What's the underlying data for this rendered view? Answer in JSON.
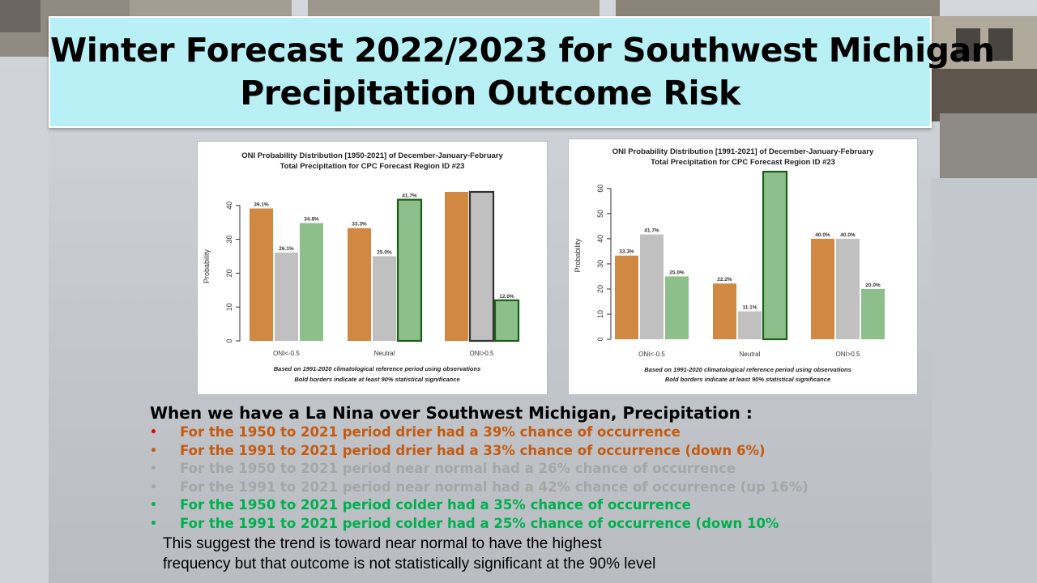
{
  "title": {
    "line1": "Winter Forecast 2022/2023 for Southwest Michigan",
    "line2": "Precipitation Outcome Risk"
  },
  "colors": {
    "drier": "#d08842",
    "normal": "#c0c0c0",
    "wetter": "#8dbf8b",
    "bold_border_green": "#1a5e1a",
    "bold_border_gray": "#333333",
    "title_bg": "#b9f0f5"
  },
  "chart_data": [
    {
      "type": "bar",
      "title": "ONI Probability Distribution [1950-2021] of December-January-February\nTotal Precipitation  for CPC Forecast Region ID #23",
      "title_lines": [
        "ONI Probability Distribution [1950-2021] of December-January-February",
        "Total Precipitation  for CPC Forecast Region ID #23"
      ],
      "ylabel": "Probability",
      "ylim": [
        0,
        44
      ],
      "yticks": [
        0,
        10,
        20,
        30,
        40
      ],
      "categories": [
        "ONI<-0.5",
        "Neutral",
        "ONI>0.5"
      ],
      "series": [
        {
          "values": [
            39.1,
            33.3,
            44.0
          ],
          "labels": [
            "39.1%",
            "33.3%",
            ""
          ],
          "bold": [
            false,
            false,
            false
          ]
        },
        {
          "values": [
            26.1,
            25.0,
            44.0
          ],
          "labels": [
            "26.1%",
            "25.0%",
            ""
          ],
          "bold": [
            false,
            false,
            true
          ]
        },
        {
          "values": [
            34.8,
            41.7,
            12.0
          ],
          "labels": [
            "34.8%",
            "41.7%",
            "12.0%"
          ],
          "bold": [
            false,
            true,
            true
          ]
        }
      ],
      "notes": [
        "Based on 1991-2020 climatological reference period using observations",
        "Bold borders indicate at least 90% statistical significance"
      ]
    },
    {
      "type": "bar",
      "title": "ONI Probability Distribution [1991-2021] of December-January-February\nTotal Precipitation  for CPC Forecast Region ID #23",
      "title_lines": [
        "ONI Probability Distribution [1991-2021] of December-January-February",
        "Total Precipitation  for CPC Forecast Region ID #23"
      ],
      "ylabel": "Probability",
      "ylim": [
        0,
        66.7
      ],
      "yticks": [
        0,
        10,
        20,
        30,
        40,
        50,
        60
      ],
      "categories": [
        "ONI<-0.5",
        "Neutral",
        "ONI>0.5"
      ],
      "series": [
        {
          "values": [
            33.3,
            22.2,
            40.0
          ],
          "labels": [
            "33.3%",
            "22.2%",
            "40.0%"
          ],
          "bold": [
            false,
            false,
            false
          ]
        },
        {
          "values": [
            41.7,
            11.1,
            40.0
          ],
          "labels": [
            "41.7%",
            "11.1%",
            "40.0%"
          ],
          "bold": [
            false,
            false,
            false
          ]
        },
        {
          "values": [
            25.0,
            66.7,
            20.0
          ],
          "labels": [
            "25.0%",
            "",
            "20.0%"
          ],
          "bold": [
            false,
            true,
            false
          ]
        }
      ],
      "notes": [
        "Based on 1991-2020 climatological reference period using observations",
        "Bold borders indicate at least 90% statistical significance"
      ]
    }
  ],
  "text": {
    "heading": "When we have a La Nina over Southwest Michigan, Precipitation :",
    "bullets": [
      {
        "text": "For the 1950 to 2021 period drier had a 39% chance of occurrence",
        "color": "#c55a11",
        "dot_color": "#e00000"
      },
      {
        "text": "For the 1991 to 2021 period drier had a 33% chance of occurrence (down 6%)",
        "color": "#c55a11",
        "dot_color": "#c55a11"
      },
      {
        "text": "For the 1950 to 2021 period near normal had a 26% chance of occurrence",
        "color": "#a6a6a6",
        "dot_color": "#a6a6a6"
      },
      {
        "text": "For the 1991 to 2021 period near normal had a 42% chance of occurrence (up 16%)",
        "color": "#a6a6a6",
        "dot_color": "#a6a6a6"
      },
      {
        "text": "For the 1950 to 2021 period colder had a 35% chance of occurrence",
        "color": "#00b050",
        "dot_color": "#00b050"
      },
      {
        "text": "For the 1991 to 2021 period colder had a 25% chance of occurrence (down 10%",
        "color": "#00b050",
        "dot_color": "#00b050"
      }
    ],
    "summary_line1": "This suggest the trend is toward near normal to have the highest",
    "summary_line2": "frequency but that outcome is not statistically significant at the 90% level"
  }
}
